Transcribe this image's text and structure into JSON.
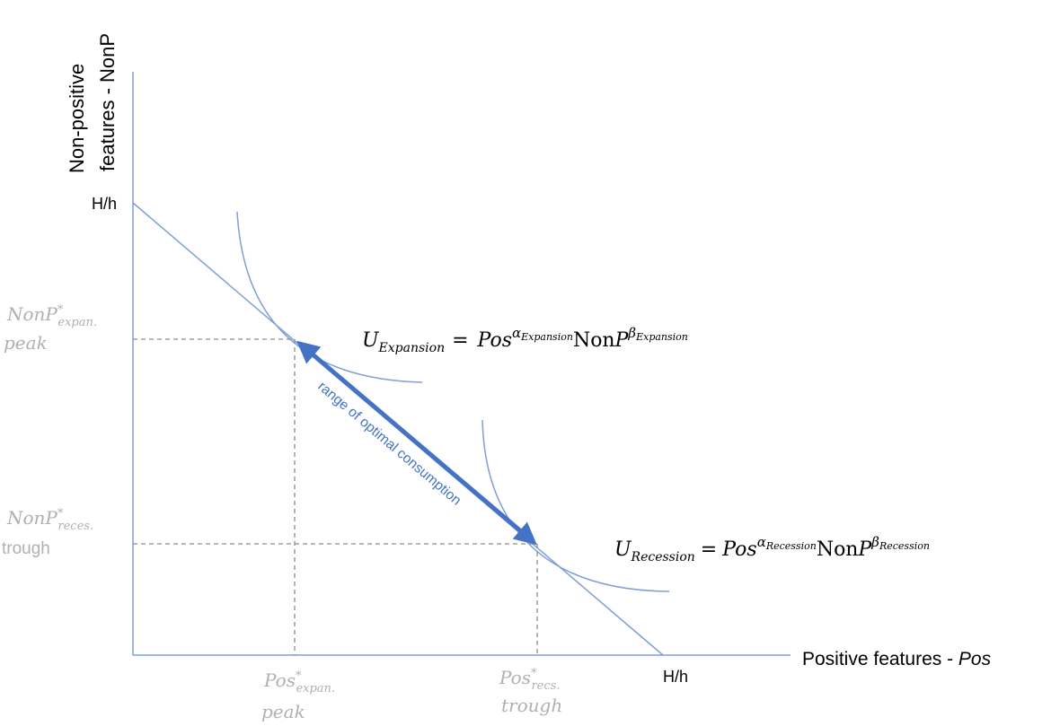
{
  "axes": {
    "y_title_line1": "Non-positive",
    "y_title_line2": "features - NonP",
    "x_title_text": "Positive features - ",
    "x_title_var": "Pos",
    "y_intercept_label": "H/h",
    "x_intercept_label": "H/h"
  },
  "y_ticks": {
    "expansion": {
      "var": "NonP",
      "sup": "*",
      "sub": "expan.",
      "note": "peak"
    },
    "recession": {
      "var": "NonP",
      "sup": "*",
      "sub": "reces.",
      "note": "trough"
    }
  },
  "x_ticks": {
    "expansion": {
      "var": "Pos",
      "sup": "*",
      "sub": "expan.",
      "note": "peak"
    },
    "recession": {
      "var": "Pos",
      "sup": "*",
      "sub": "recs.",
      "note": "trough"
    }
  },
  "equations": {
    "expansion": {
      "u": "U",
      "u_sub": "Expansion",
      "eq": "=",
      "pos": "Pos",
      "alpha": "α",
      "alpha_sub": "Expansion",
      "nonp": "Non",
      "nonp_italic": "P",
      "beta": "β",
      "beta_sub": "Expansion"
    },
    "recession": {
      "u": "U",
      "u_sub": "Recession",
      "eq": "=",
      "pos": "Pos",
      "alpha": "α",
      "alpha_sub": "Recession",
      "nonp": "Non",
      "nonp_italic": "P",
      "beta": "β",
      "beta_sub": "Recession"
    }
  },
  "arrow_label": "range of optimal consumption",
  "colors": {
    "line": "#7f9fd9",
    "arrow": "#4472c4",
    "dashed": "#8c8c8c",
    "tick_text": "#b0b0b0",
    "text": "#000000"
  }
}
